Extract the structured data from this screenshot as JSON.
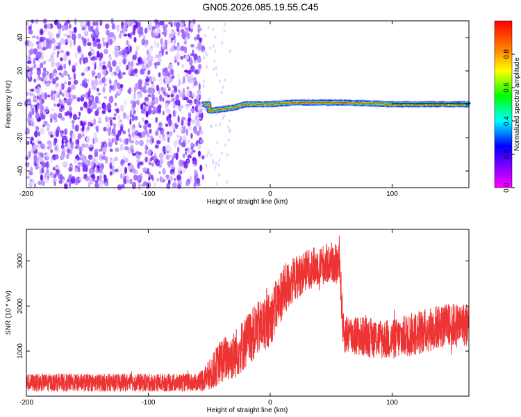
{
  "title": "GN05.2026.085.19.55.C45",
  "chart_data": [
    {
      "type": "heatmap",
      "xlabel": "Height of straight line (km)",
      "ylabel": "Frequency (Hz)",
      "xlim": [
        -200,
        163
      ],
      "ylim": [
        -50,
        50
      ],
      "xticks": [
        -200,
        -100,
        0,
        100
      ],
      "yticks": [
        -40,
        -20,
        0,
        20,
        40
      ],
      "colorbar": {
        "label": "Normalized spectral amplitude",
        "range": [
          0,
          1
        ],
        "ticks": [
          0.0,
          0.2,
          0.4,
          0.6,
          0.8
        ],
        "colors": [
          "#ff00ff",
          "#8800ff",
          "#0000ff",
          "#00ffff",
          "#00ff00",
          "#ffff00",
          "#ff8800",
          "#ff0000"
        ]
      },
      "features": {
        "noise_region_x": [
          -200,
          -55
        ],
        "signal_trace_x": [
          -55,
          163
        ],
        "signal_trace_freq": [
          {
            "x": -50,
            "f": -4
          },
          {
            "x": -30,
            "f": -2
          },
          {
            "x": -20,
            "f": 0
          },
          {
            "x": 0,
            "f": 0
          },
          {
            "x": 20,
            "f": 1
          },
          {
            "x": 40,
            "f": 1
          },
          {
            "x": 60,
            "f": 1
          },
          {
            "x": 100,
            "f": 0
          },
          {
            "x": 163,
            "f": 0
          }
        ]
      }
    },
    {
      "type": "line",
      "xlabel": "Height of straight line (km)",
      "ylabel": "SNR (10 * v/v)",
      "xlim": [
        -200,
        163
      ],
      "ylim": [
        0,
        3700
      ],
      "xticks": [
        -200,
        -100,
        0,
        100
      ],
      "yticks": [
        1000,
        2000,
        3000
      ],
      "color": "#ee3333",
      "envelope": [
        {
          "x": -200,
          "mean": 300,
          "spread": 200
        },
        {
          "x": -150,
          "mean": 300,
          "spread": 200
        },
        {
          "x": -100,
          "mean": 300,
          "spread": 200
        },
        {
          "x": -60,
          "mean": 300,
          "spread": 200
        },
        {
          "x": -50,
          "mean": 450,
          "spread": 350
        },
        {
          "x": -40,
          "mean": 800,
          "spread": 500
        },
        {
          "x": -30,
          "mean": 900,
          "spread": 550
        },
        {
          "x": -20,
          "mean": 1200,
          "spread": 600
        },
        {
          "x": -10,
          "mean": 1500,
          "spread": 600
        },
        {
          "x": 0,
          "mean": 1700,
          "spread": 600
        },
        {
          "x": 10,
          "mean": 2300,
          "spread": 600
        },
        {
          "x": 20,
          "mean": 2600,
          "spread": 500
        },
        {
          "x": 30,
          "mean": 2800,
          "spread": 450
        },
        {
          "x": 40,
          "mean": 2900,
          "spread": 450
        },
        {
          "x": 50,
          "mean": 2950,
          "spread": 450
        },
        {
          "x": 57,
          "mean": 2900,
          "spread": 450
        },
        {
          "x": 60,
          "mean": 1400,
          "spread": 450
        },
        {
          "x": 80,
          "mean": 1300,
          "spread": 450
        },
        {
          "x": 100,
          "mean": 1250,
          "spread": 450
        },
        {
          "x": 120,
          "mean": 1400,
          "spread": 500
        },
        {
          "x": 140,
          "mean": 1550,
          "spread": 500
        },
        {
          "x": 163,
          "mean": 1600,
          "spread": 500
        }
      ]
    }
  ]
}
